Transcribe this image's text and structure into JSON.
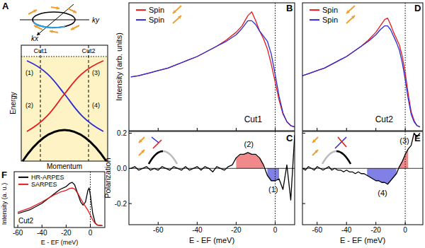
{
  "diagram": {
    "panel": "A",
    "x_label": "Momentum",
    "y_label": "Energy",
    "k_labels": [
      "kx",
      "ky"
    ],
    "cuts": [
      "Cut1",
      "Cut2"
    ],
    "states": [
      "(1)",
      "(2)",
      "(3)",
      "(4)"
    ]
  },
  "chart_data": [
    {
      "type": "line",
      "panel": "B",
      "annotation": "Cut1",
      "y_label": "Intensity (arb. units)",
      "xlim": [
        -75,
        10
      ],
      "ylim": [
        0,
        1
      ],
      "xticks": [
        -60,
        -40,
        -20,
        0
      ],
      "tick_labels": false,
      "legend": "upper left",
      "reference_x": 0,
      "x": [
        -74,
        -70,
        -65,
        -60,
        -55,
        -50,
        -45,
        -40,
        -35,
        -30,
        -25,
        -20,
        -17,
        -14,
        -12,
        -10,
        -8,
        -6,
        -4,
        -2,
        0,
        2,
        4,
        6,
        8,
        10
      ],
      "series": [
        {
          "name": "Spin",
          "color": "#e41a1c",
          "values": [
            0.42,
            0.43,
            0.45,
            0.47,
            0.49,
            0.52,
            0.55,
            0.58,
            0.62,
            0.66,
            0.71,
            0.77,
            0.82,
            0.9,
            0.93,
            0.86,
            0.78,
            0.72,
            0.64,
            0.52,
            0.38,
            0.24,
            0.13,
            0.07,
            0.04,
            0.03
          ]
        },
        {
          "name": "Spin",
          "color": "#2b2bd9",
          "values": [
            0.42,
            0.43,
            0.45,
            0.47,
            0.49,
            0.52,
            0.55,
            0.58,
            0.62,
            0.66,
            0.7,
            0.75,
            0.8,
            0.86,
            0.86,
            0.83,
            0.78,
            0.74,
            0.7,
            0.6,
            0.44,
            0.27,
            0.14,
            0.07,
            0.04,
            0.03
          ]
        }
      ]
    },
    {
      "type": "line",
      "panel": "C",
      "x_label": "E - EF (meV)",
      "y_label": "Polarization",
      "xlim": [
        -75,
        10
      ],
      "ylim": [
        -0.32,
        0.21
      ],
      "xticks": [
        -60,
        -40,
        -20,
        0
      ],
      "yticks": [
        -0.2,
        {
          "value": 0,
          "label": "0.0"
        },
        0.2
      ],
      "reference_x": 0,
      "reference_y": 0,
      "x": [
        -74,
        -72,
        -70,
        -68,
        -66,
        -64,
        -62,
        -60,
        -58,
        -56,
        -54,
        -52,
        -50,
        -48,
        -46,
        -44,
        -42,
        -40,
        -38,
        -36,
        -34,
        -32,
        -30,
        -28,
        -26,
        -24,
        -22,
        -20,
        -18,
        -16,
        -14,
        -12,
        -10,
        -8,
        -6,
        -4,
        -2,
        0,
        2,
        4,
        6,
        8,
        10
      ],
      "series": [
        {
          "color": "#000000",
          "values": [
            0.0,
            0.01,
            -0.01,
            0.0,
            0.01,
            -0.01,
            0.0,
            -0.01,
            0.01,
            0.0,
            -0.01,
            0.01,
            0.0,
            -0.01,
            0.01,
            -0.01,
            0.0,
            0.01,
            -0.01,
            0.01,
            0.0,
            -0.02,
            0.01,
            0.0,
            -0.01,
            0.01,
            0.02,
            0.06,
            0.08,
            0.08,
            0.09,
            0.08,
            0.08,
            0.06,
            0.02,
            -0.04,
            -0.07,
            -0.07,
            -0.06,
            -0.12,
            0.02,
            -0.18,
            0.19
          ]
        }
      ],
      "regions": [
        {
          "from": -21,
          "to": -6,
          "color": "#f08a8a",
          "label": "(2)"
        },
        {
          "from": -5,
          "to": 3,
          "color": "#8080e6",
          "label": "(1)"
        }
      ]
    },
    {
      "type": "line",
      "panel": "D",
      "annotation": "Cut2",
      "xlim": [
        -70,
        12
      ],
      "ylim": [
        0,
        1
      ],
      "xticks": [
        -60,
        -40,
        -20,
        0
      ],
      "tick_labels": false,
      "legend": "upper left",
      "reference_x": 0,
      "x": [
        -70,
        -65,
        -60,
        -55,
        -50,
        -45,
        -40,
        -35,
        -30,
        -25,
        -20,
        -17,
        -14,
        -12,
        -10,
        -8,
        -6,
        -4,
        -2,
        0,
        2,
        4,
        6,
        8,
        10
      ],
      "series": [
        {
          "name": "Spin",
          "color": "#e41a1c",
          "values": [
            0.43,
            0.45,
            0.47,
            0.49,
            0.52,
            0.55,
            0.58,
            0.62,
            0.66,
            0.71,
            0.77,
            0.82,
            0.87,
            0.88,
            0.83,
            0.77,
            0.72,
            0.67,
            0.58,
            0.45,
            0.29,
            0.15,
            0.08,
            0.04,
            0.03
          ]
        },
        {
          "name": "Spin",
          "color": "#2b2bd9",
          "values": [
            0.43,
            0.45,
            0.47,
            0.49,
            0.52,
            0.55,
            0.58,
            0.62,
            0.66,
            0.7,
            0.75,
            0.79,
            0.82,
            0.82,
            0.79,
            0.74,
            0.69,
            0.63,
            0.53,
            0.4,
            0.25,
            0.13,
            0.07,
            0.04,
            0.03
          ]
        }
      ]
    },
    {
      "type": "line",
      "panel": "E",
      "x_label": "E - EF (meV)",
      "xlim": [
        -70,
        12
      ],
      "ylim": [
        -0.32,
        0.21
      ],
      "xticks": [
        -60,
        -40,
        -20,
        0
      ],
      "yticks": [
        -0.2,
        {
          "value": 0,
          "label": "0.0"
        },
        0.2
      ],
      "tick_labels": "x",
      "reference_x": 0,
      "reference_y": 0,
      "x": [
        -70,
        -68,
        -66,
        -64,
        -62,
        -60,
        -58,
        -56,
        -54,
        -52,
        -50,
        -48,
        -46,
        -44,
        -42,
        -40,
        -38,
        -36,
        -34,
        -32,
        -30,
        -28,
        -26,
        -24,
        -22,
        -20,
        -18,
        -16,
        -14,
        -12,
        -10,
        -8,
        -6,
        -4,
        -2,
        0,
        2,
        4,
        6,
        8,
        10
      ],
      "series": [
        {
          "color": "#000000",
          "values": [
            0.0,
            -0.01,
            0.01,
            0.0,
            -0.01,
            0.01,
            0.0,
            -0.01,
            0.0,
            0.01,
            -0.01,
            0.0,
            -0.01,
            -0.01,
            -0.02,
            -0.01,
            -0.02,
            -0.02,
            -0.03,
            -0.02,
            -0.03,
            -0.03,
            -0.04,
            -0.05,
            -0.06,
            -0.07,
            -0.07,
            -0.08,
            -0.08,
            -0.09,
            -0.07,
            -0.05,
            -0.03,
            0.01,
            0.04,
            0.08,
            0.11,
            0.13,
            0.2,
            0.18,
            0.2
          ]
        }
      ],
      "regions": [
        {
          "from": -26,
          "to": -5,
          "color": "#8080e6",
          "label": "(4)"
        },
        {
          "from": -4,
          "to": 3,
          "color": "#f08a8a",
          "label": "(3)"
        }
      ]
    },
    {
      "type": "line",
      "panel": "F",
      "annotation": "Cut2",
      "x_label": "E - EF (meV)",
      "y_label": "Intensity (a. u.)",
      "xlim": [
        -63,
        12
      ],
      "ylim": [
        0,
        1.2
      ],
      "xticks": [
        -60,
        -40,
        -20,
        0
      ],
      "tick_labels": "x",
      "legend": "upper left",
      "reference_x": 0,
      "x": [
        -60,
        -50,
        -40,
        -30,
        -25,
        -20,
        -17,
        -15,
        -13,
        -10,
        -8,
        -6,
        -4,
        -2,
        -1,
        0,
        2,
        4,
        6,
        10
      ],
      "series": [
        {
          "name": "HR-ARPES",
          "color": "#000000",
          "values": [
            0.3,
            0.38,
            0.52,
            0.72,
            0.82,
            0.88,
            0.95,
            0.97,
            0.92,
            0.7,
            0.55,
            0.48,
            0.55,
            0.8,
            0.85,
            0.7,
            0.3,
            0.1,
            0.05,
            0.04
          ]
        },
        {
          "name": "SARPES",
          "color": "#e41a1c",
          "values": [
            0.33,
            0.42,
            0.55,
            0.7,
            0.76,
            0.8,
            0.84,
            0.85,
            0.83,
            0.72,
            0.62,
            0.53,
            0.45,
            0.37,
            0.32,
            0.27,
            0.16,
            0.09,
            0.05,
            0.04
          ]
        }
      ]
    }
  ]
}
